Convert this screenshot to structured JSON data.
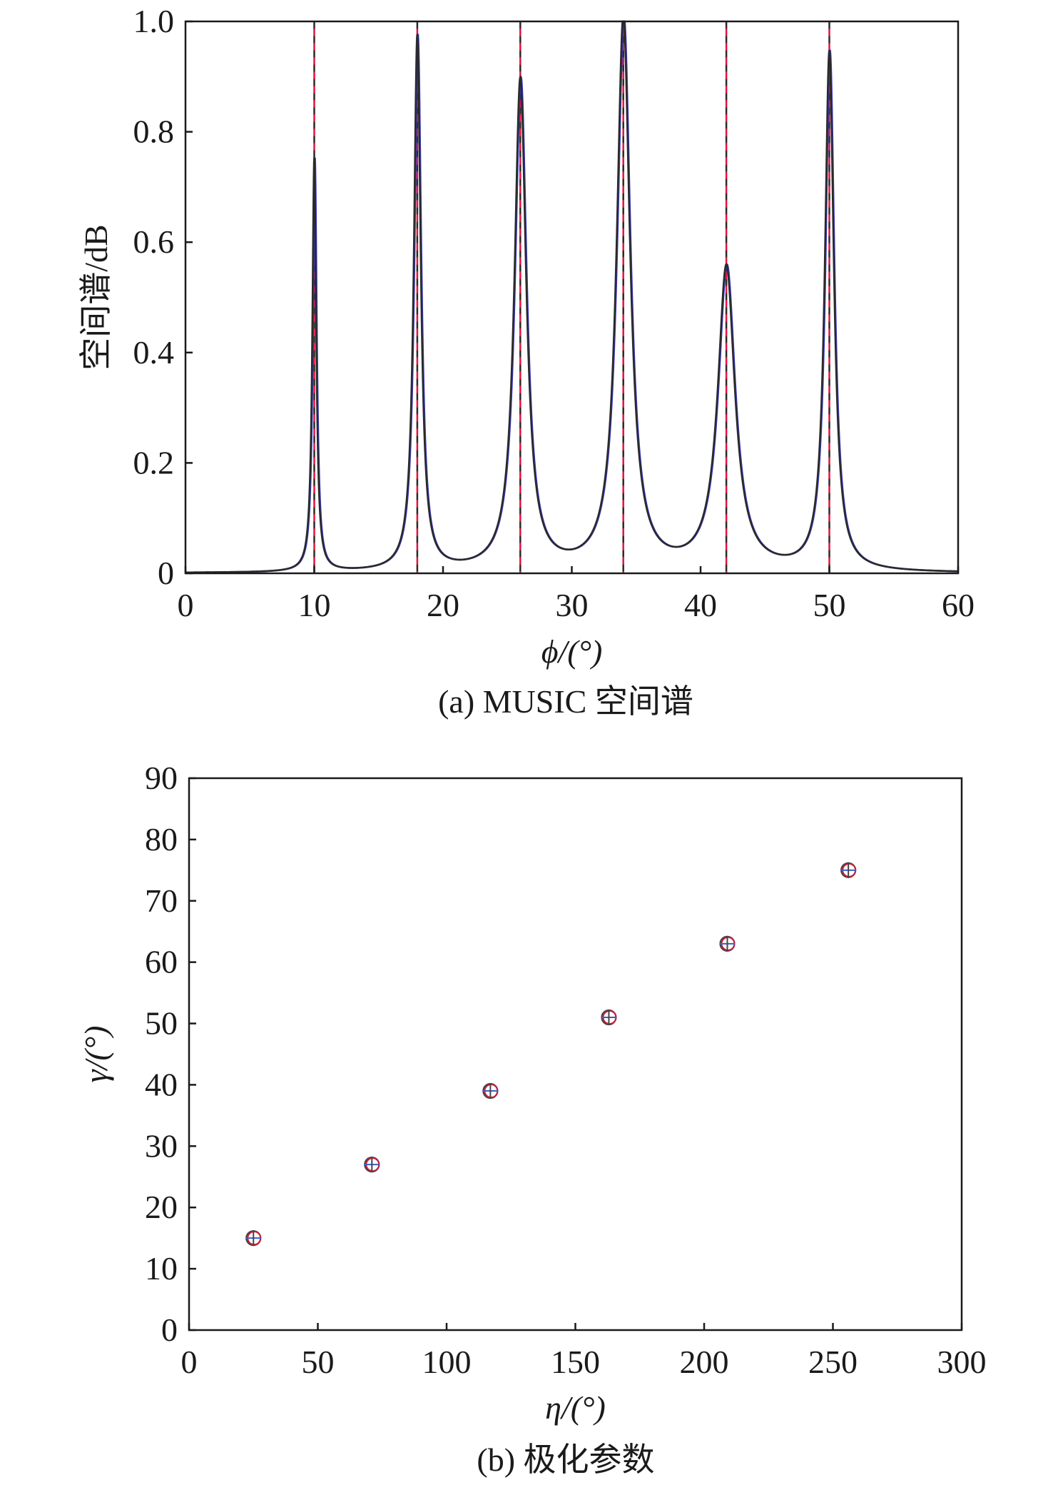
{
  "chart_data": [
    {
      "type": "line",
      "caption": "(a) MUSIC 空间谱",
      "xlabel": "ϕ/(°)",
      "ylabel": "空间谱/dB",
      "xlim": [
        0,
        60
      ],
      "ylim": [
        0,
        1.0
      ],
      "xticks": [
        0,
        10,
        20,
        30,
        40,
        50,
        60
      ],
      "yticks": [
        0,
        0.2,
        0.4,
        0.6,
        0.8,
        1.0
      ],
      "ytick_labels": [
        "0",
        "0.2",
        "0.4",
        "0.6",
        "0.8",
        "1.0"
      ],
      "grid": false,
      "line_colors": [
        "#2a2a2a",
        "#3a3ad0"
      ],
      "peaks": [
        {
          "x": 10,
          "y": 0.75
        },
        {
          "x": 18,
          "y": 0.97
        },
        {
          "x": 26,
          "y": 0.89
        },
        {
          "x": 34,
          "y": 1.0
        },
        {
          "x": 42,
          "y": 0.55
        },
        {
          "x": 50,
          "y": 0.94
        }
      ],
      "reference_lines": {
        "x": [
          10,
          18,
          26,
          34,
          42,
          50
        ],
        "colors": [
          "#e0143c",
          "#2a2a2a"
        ],
        "style": "dashed"
      }
    },
    {
      "type": "scatter",
      "caption": "(b) 极化参数",
      "xlabel": "η/(°)",
      "ylabel": "γ/(°)",
      "xlim": [
        0,
        300
      ],
      "ylim": [
        0,
        90
      ],
      "xticks": [
        0,
        50,
        100,
        150,
        200,
        250,
        300
      ],
      "yticks": [
        0,
        10,
        20,
        30,
        40,
        50,
        60,
        70,
        80,
        90
      ],
      "grid": false,
      "marker": "circle-plus",
      "marker_colors": [
        "#c81e3c",
        "#3a5fc8",
        "#444444"
      ],
      "points": [
        {
          "x": 25,
          "y": 15
        },
        {
          "x": 71,
          "y": 27
        },
        {
          "x": 117,
          "y": 39
        },
        {
          "x": 163,
          "y": 51
        },
        {
          "x": 209,
          "y": 63
        },
        {
          "x": 256,
          "y": 75
        }
      ]
    }
  ]
}
